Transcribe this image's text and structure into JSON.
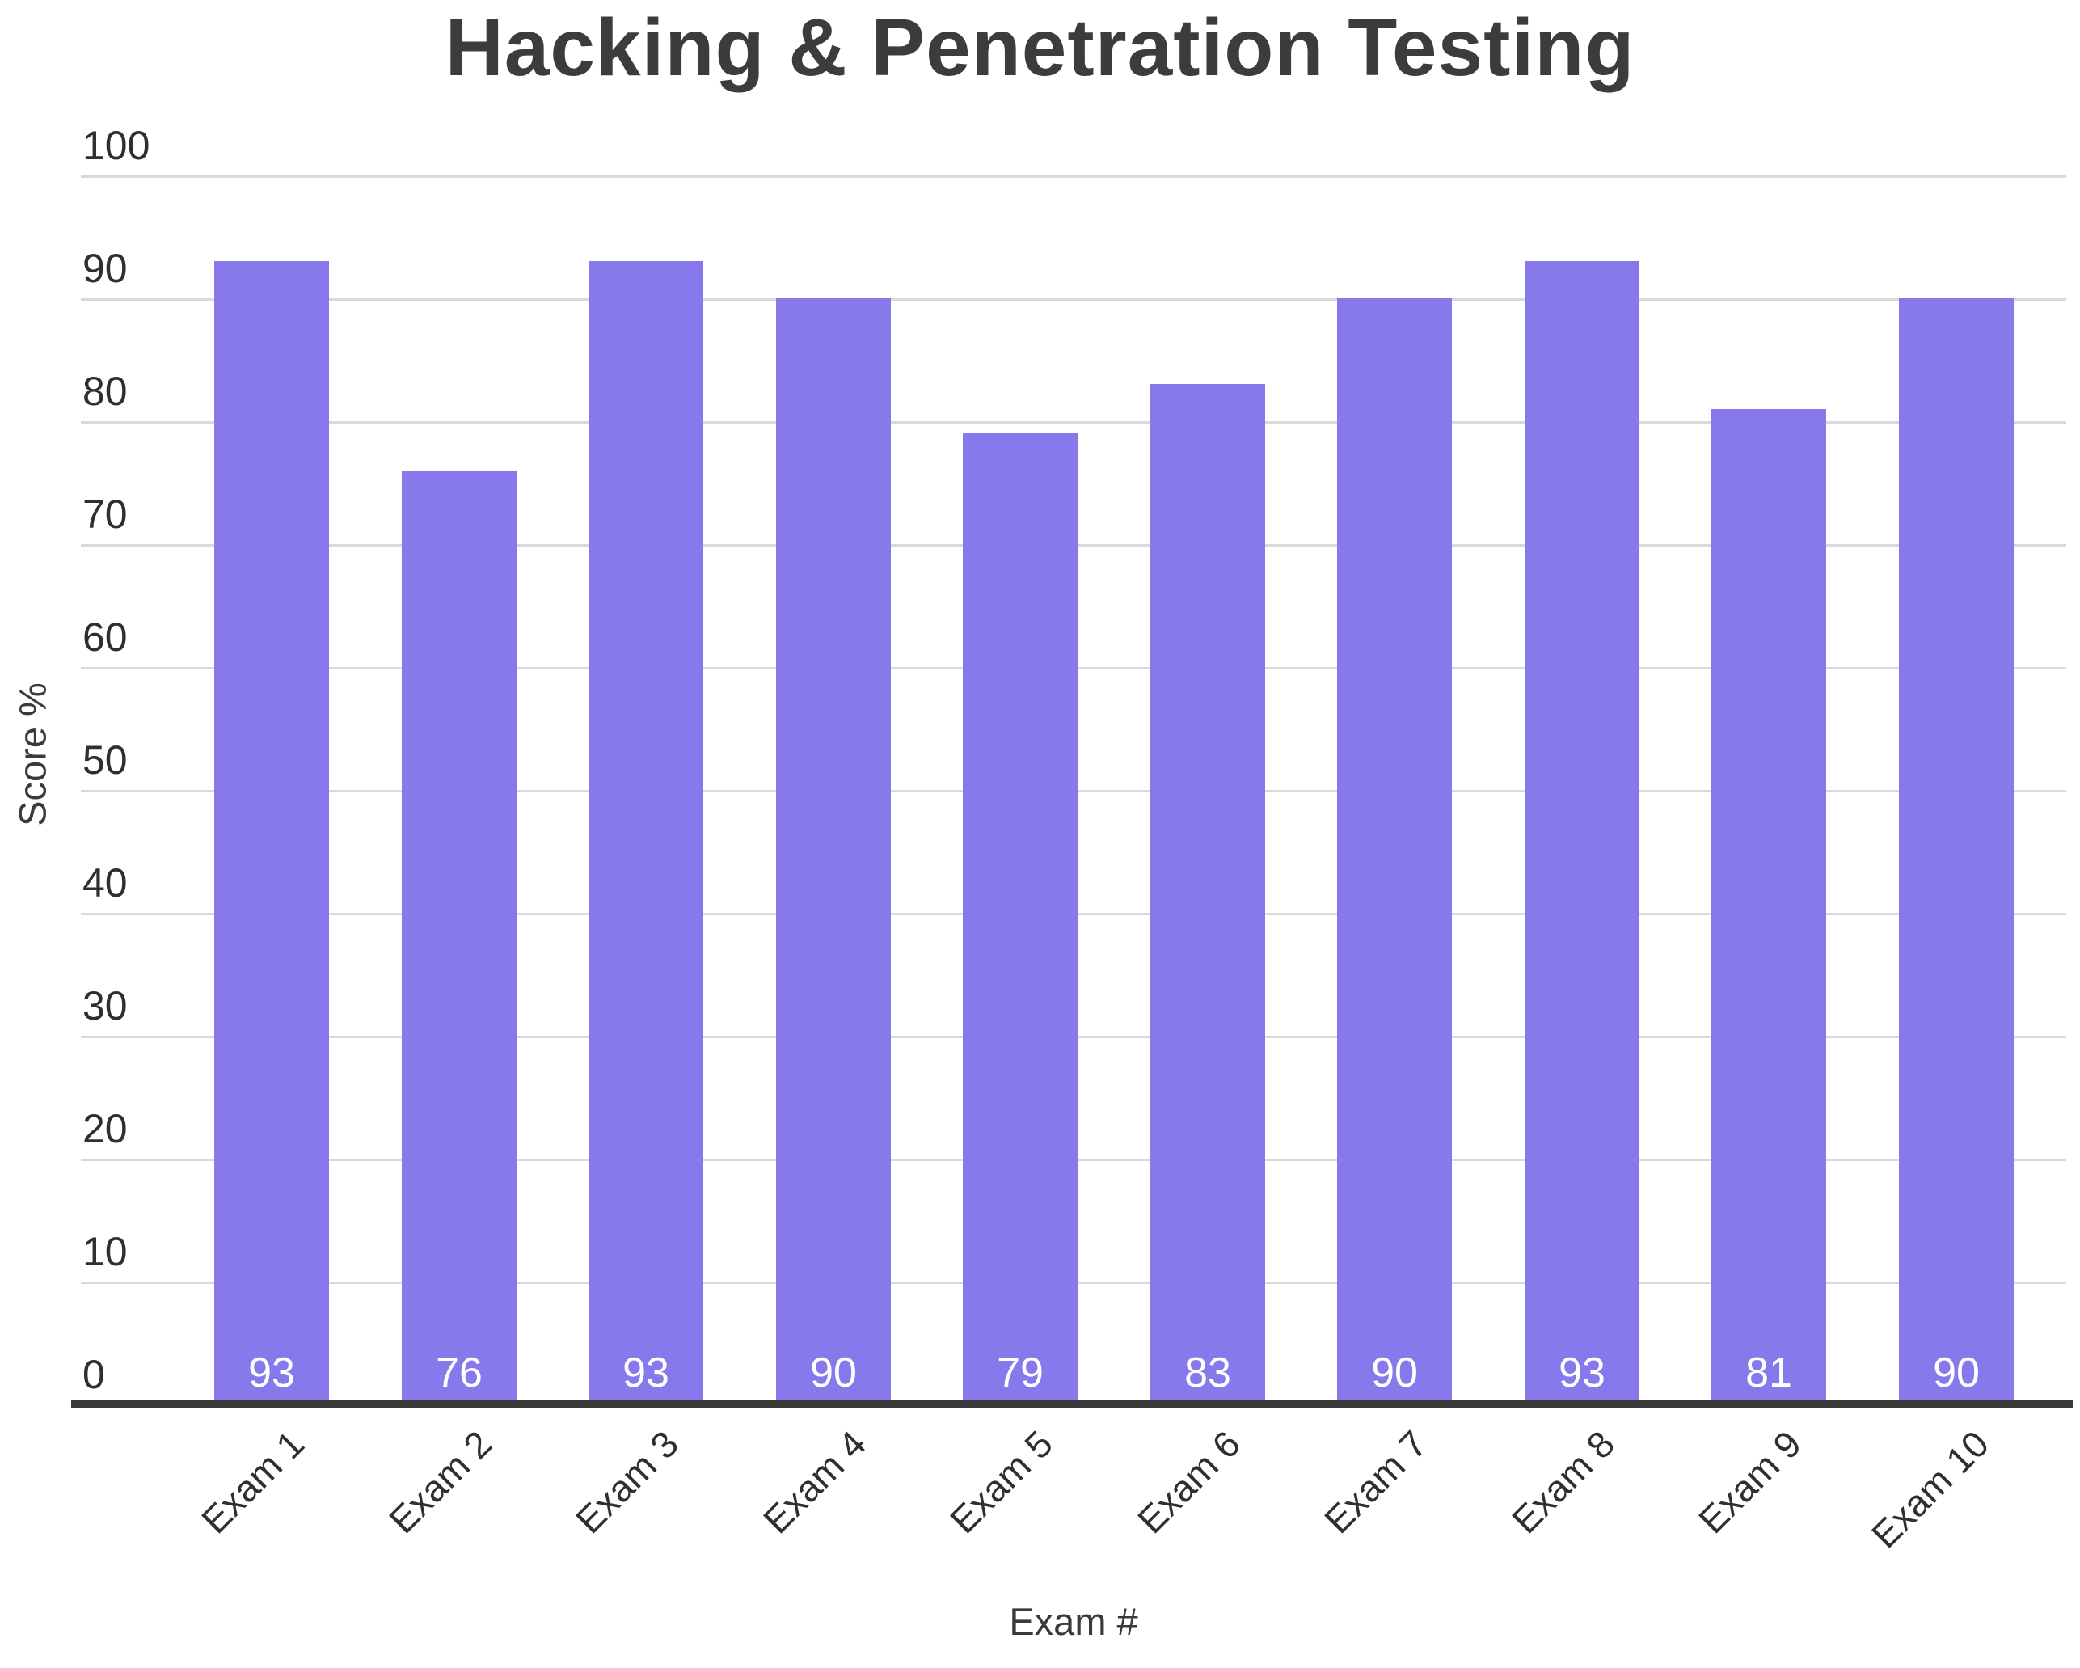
{
  "header": {
    "title": "Hacking & Penetration Testing"
  },
  "chart_data": {
    "type": "bar",
    "title": "Hacking & Penetration Testing",
    "categories": [
      "Exam 1",
      "Exam 2",
      "Exam 3",
      "Exam 4",
      "Exam 5",
      "Exam 6",
      "Exam 7",
      "Exam 8",
      "Exam 9",
      "Exam 10"
    ],
    "values": [
      93,
      76,
      93,
      90,
      79,
      83,
      90,
      93,
      81,
      90
    ],
    "xlabel": "Exam #",
    "ylabel": "Score %",
    "ylim": [
      0,
      100
    ],
    "yticks": [
      0,
      10,
      20,
      30,
      40,
      50,
      60,
      70,
      80,
      90,
      100
    ],
    "grid": true,
    "legend_position": "none",
    "value_labels_shown_inside_bar_bottom": true,
    "colors": {
      "bar": "#8778ec",
      "value_label": "#ffffff",
      "gridline": "#d9d9d9",
      "axis_line": "#3a3a3a",
      "tick_label": "#2f2f2f",
      "title": "#3c3c3c",
      "axis_title": "#3a3a3a",
      "background": "#ffffff"
    }
  }
}
